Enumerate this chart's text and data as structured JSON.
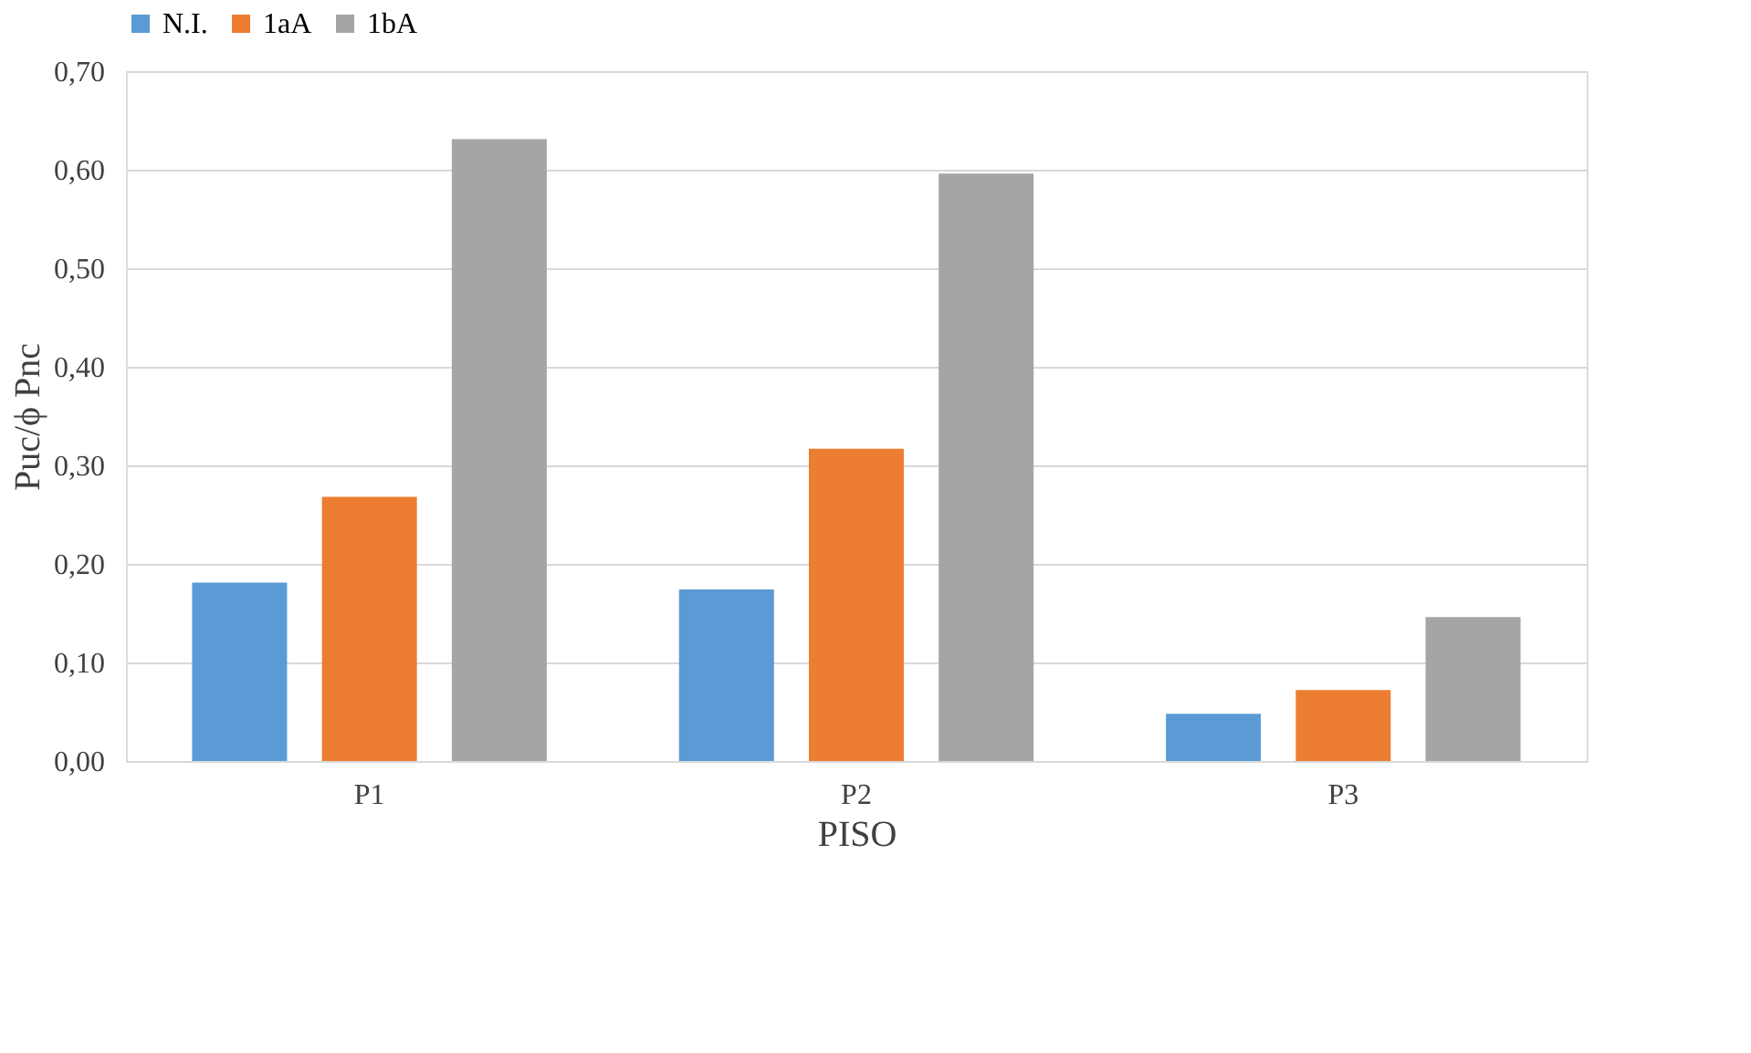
{
  "chart_data": {
    "type": "bar",
    "xlabel": "PISO",
    "ylabel": "Puc/ϕ Pnc",
    "categories": [
      "P1",
      "P2",
      "P3"
    ],
    "series": [
      {
        "name": "N.I.",
        "color": "#5b9bd5",
        "values": [
          0.181,
          0.174,
          0.048
        ]
      },
      {
        "name": "1aA",
        "color": "#ed7d31",
        "values": [
          0.268,
          0.317,
          0.072
        ]
      },
      {
        "name": "1bA",
        "color": "#a5a5a5",
        "values": [
          0.631,
          0.596,
          0.146
        ]
      }
    ],
    "ylim": [
      0,
      0.7
    ],
    "yticks": [
      {
        "value": 0,
        "label": "0,00"
      },
      {
        "value": 0.1,
        "label": "0,10"
      },
      {
        "value": 0.2,
        "label": "0,20"
      },
      {
        "value": 0.3,
        "label": "0,30"
      },
      {
        "value": 0.4,
        "label": "0,40"
      },
      {
        "value": 0.5,
        "label": "0,50"
      },
      {
        "value": 0.6,
        "label": "0,60"
      },
      {
        "value": 0.7,
        "label": "0,70"
      }
    ],
    "grid": "y",
    "legend": "top"
  }
}
